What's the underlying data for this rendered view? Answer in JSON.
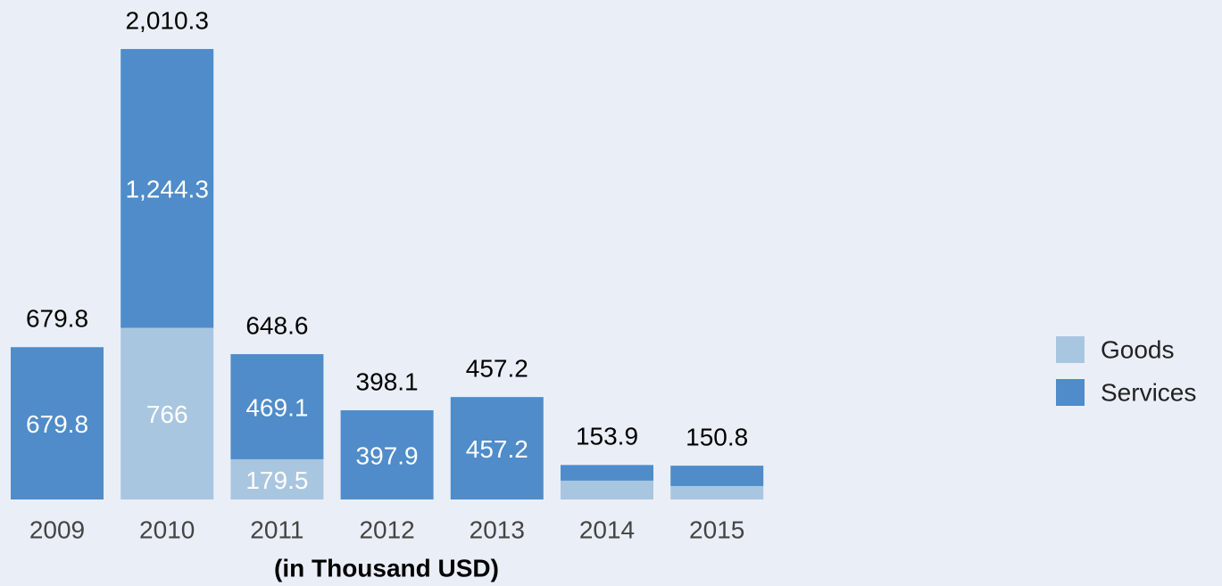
{
  "chart_data": {
    "type": "stacked_bar",
    "categories": [
      "2009",
      "2010",
      "2011",
      "2012",
      "2013",
      "2014",
      "2015"
    ],
    "series": [
      {
        "name": "Goods",
        "color": "#a9c6e0",
        "values": [
          0,
          766,
          179.5,
          0.2,
          0,
          84,
          60
        ],
        "value_labels": [
          null,
          "766",
          "179.5",
          null,
          null,
          null,
          null
        ]
      },
      {
        "name": "Services",
        "color": "#4f8cc9",
        "values": [
          679.8,
          1244.3,
          469.1,
          397.9,
          457.2,
          69.9,
          90.8
        ],
        "value_labels": [
          "679.8",
          "1,244.3",
          "469.1",
          "397.9",
          "457.2",
          null,
          null
        ]
      }
    ],
    "totals": {
      "values": [
        679.8,
        2010.3,
        648.6,
        398.1,
        457.2,
        153.9,
        150.8
      ],
      "value_labels": [
        "679.8",
        "2,010.3",
        "648.6",
        "398.1",
        "457.2",
        "153.9",
        "150.8"
      ]
    },
    "x_label": "(in Thousand USD)",
    "ylim": [
      0,
      2200
    ],
    "legend": "right"
  }
}
